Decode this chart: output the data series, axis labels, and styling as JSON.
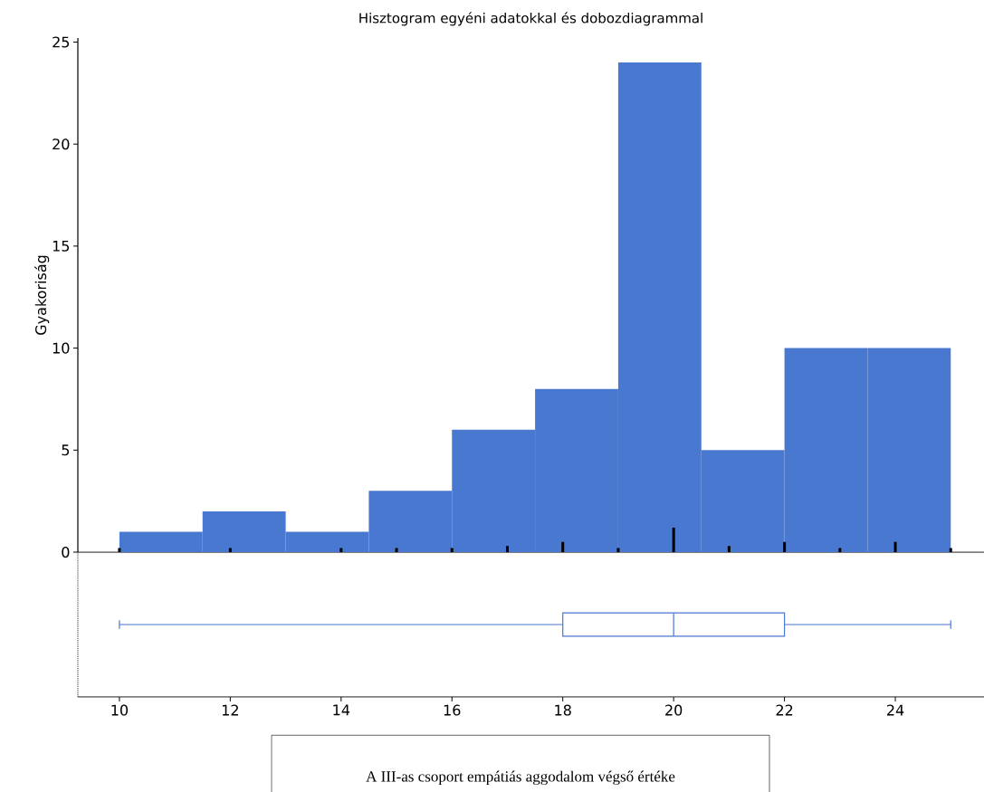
{
  "chart_data": [
    {
      "type": "histogram",
      "title": "Hisztogram egyéni adatokkal és dobozdiagrammal",
      "ylabel": "Gyakoriság",
      "xlim": [
        9.25,
        25.6
      ],
      "ylim": [
        0,
        25.2
      ],
      "yticks": [
        0,
        5,
        10,
        15,
        20,
        25
      ],
      "tick_labels": "y",
      "series": [
        {
          "type": "histogram",
          "color": "#4878d0",
          "bins": [
            10,
            11.5,
            13,
            14.5,
            16,
            17.5,
            19,
            20.5,
            22,
            23.5,
            25
          ],
          "values": [
            1,
            2,
            1,
            3,
            6,
            8,
            24,
            5,
            10,
            10
          ]
        },
        {
          "type": "bar",
          "color": "#000000",
          "x": [
            10,
            12,
            14,
            15,
            16,
            17,
            18,
            19,
            20,
            21,
            22,
            23,
            24,
            25
          ],
          "values": [
            0.2,
            0.2,
            0.2,
            0.2,
            0.2,
            0.3,
            0.5,
            0.2,
            1.2,
            0.3,
            0.5,
            0.2,
            0.5,
            0.2
          ]
        }
      ]
    },
    {
      "type": "box",
      "orientation": "horizontal",
      "xlabel": "A III-as csoport empátiás aggodalom végső értéke",
      "xlim": [
        9.25,
        25.6
      ],
      "xticks": [
        10,
        12,
        14,
        16,
        18,
        20,
        22,
        24
      ],
      "tick_labels": "x",
      "categories": [
        null
      ],
      "color": "#4a78d0",
      "boxes": [
        {
          "low": 10,
          "q1": 18,
          "median": 20,
          "q3": 22,
          "high": 25
        }
      ]
    }
  ]
}
